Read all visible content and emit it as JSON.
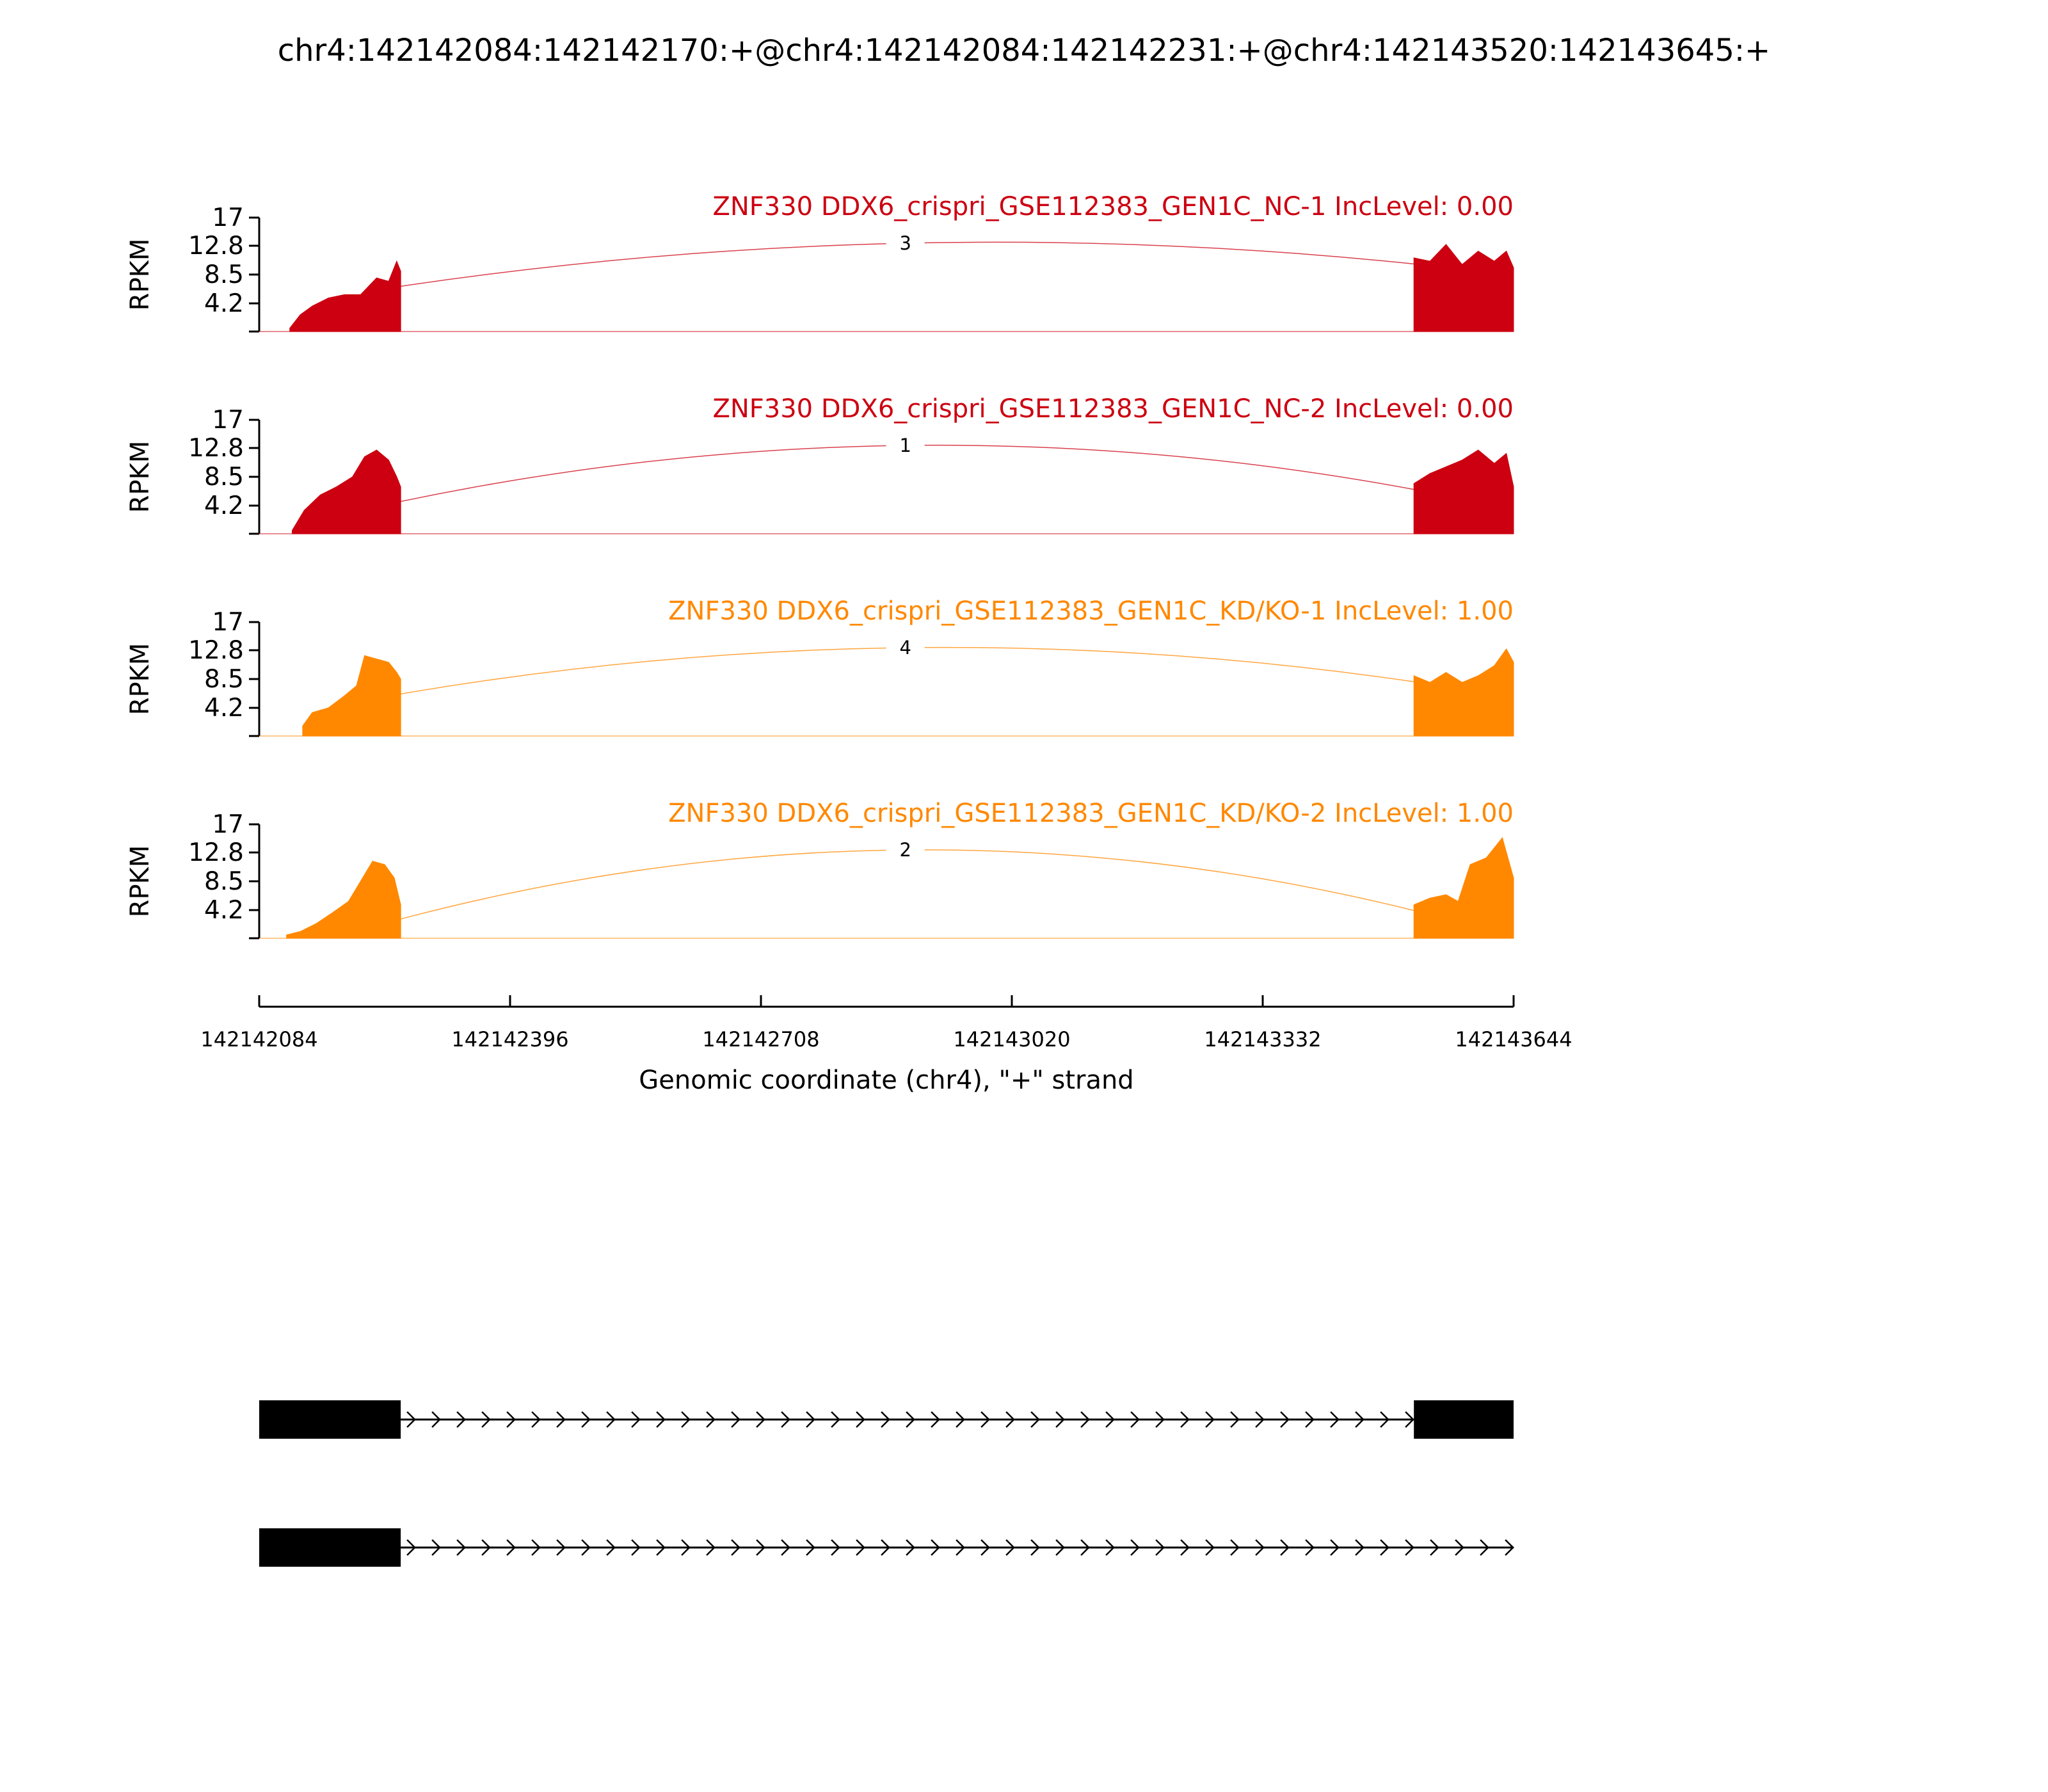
{
  "chart_data": {
    "type": "area",
    "title": "chr4:142142084:142142170:+@chr4:142142084:142142231:+@chr4:142143520:142143645:+",
    "xlabel": "Genomic coordinate (chr4), \"+\" strand",
    "ylabel": "RPKM",
    "xlim": [
      142142084,
      142143644
    ],
    "x_ticks": [
      "142142084",
      "142142396",
      "142142708",
      "142143020",
      "142143332",
      "142143644"
    ],
    "ylim": [
      0,
      17
    ],
    "y_ticks": [
      "17",
      "12.8",
      "8.5",
      "4.2"
    ],
    "grid": false,
    "exons": [
      {
        "start": 142142084,
        "end": 142142260
      },
      {
        "start": 142143520,
        "end": 142143644
      }
    ],
    "panels": [
      {
        "label": "ZNF330 DDX6_crispri_GSE112383_GEN1C_NC-1 IncLevel: 0.00",
        "color": "#cc0011",
        "junction_count": "3",
        "exon1_x": [
          142142122,
          142142135,
          142142150,
          142142170,
          142142190,
          142142210,
          142142230,
          142142245,
          142142255,
          142142260
        ],
        "exon1_y": [
          0.5,
          2.5,
          3.8,
          5.0,
          5.5,
          5.5,
          8.0,
          7.5,
          10.5,
          9.0
        ],
        "exon2_x": [
          142143520,
          142143540,
          142143560,
          142143580,
          142143600,
          142143620,
          142143635,
          142143644
        ],
        "exon2_y": [
          11.0,
          10.5,
          13.0,
          10.0,
          12.0,
          10.5,
          12.0,
          9.5
        ]
      },
      {
        "label": "ZNF330 DDX6_crispri_GSE112383_GEN1C_NC-2 IncLevel: 0.00",
        "color": "#cc0011",
        "junction_count": "1",
        "exon1_x": [
          142142125,
          142142140,
          142142160,
          142142180,
          142142200,
          142142215,
          142142230,
          142142245,
          142142255,
          142142260
        ],
        "exon1_y": [
          0.5,
          3.5,
          5.8,
          7.0,
          8.5,
          11.5,
          12.5,
          11.0,
          8.5,
          7.0
        ],
        "exon2_x": [
          142143520,
          142143540,
          142143560,
          142143580,
          142143600,
          142143620,
          142143635,
          142143644
        ],
        "exon2_y": [
          7.5,
          9.0,
          10.0,
          11.0,
          12.5,
          10.5,
          12.0,
          7.0
        ]
      },
      {
        "label": "ZNF330 DDX6_crispri_GSE112383_GEN1C_KD/KO-1 IncLevel: 1.00",
        "color": "#ff8800",
        "junction_count": "4",
        "exon1_x": [
          142142138,
          142142150,
          142142170,
          142142190,
          142142205,
          142142215,
          142142230,
          142142245,
          142142255,
          142142260
        ],
        "exon1_y": [
          1.5,
          3.5,
          4.2,
          6.0,
          7.5,
          12.0,
          11.5,
          11.0,
          9.5,
          8.5
        ],
        "exon2_x": [
          142143520,
          142143540,
          142143560,
          142143580,
          142143600,
          142143620,
          142143635,
          142143644
        ],
        "exon2_y": [
          9.0,
          8.0,
          9.5,
          8.0,
          9.0,
          10.5,
          13.0,
          11.0
        ]
      },
      {
        "label": "ZNF330 DDX6_crispri_GSE112383_GEN1C_KD/KO-2 IncLevel: 1.00",
        "color": "#ff8800",
        "junction_count": "2",
        "exon1_x": [
          142142118,
          142142135,
          142142155,
          142142175,
          142142195,
          142142210,
          142142225,
          142142240,
          142142252,
          142142260
        ],
        "exon1_y": [
          0.5,
          1.0,
          2.2,
          3.8,
          5.5,
          8.5,
          11.5,
          11.0,
          9.0,
          5.0
        ],
        "exon2_x": [
          142143520,
          142143540,
          142143560,
          142143575,
          142143590,
          142143610,
          142143630,
          142143644
        ],
        "exon2_y": [
          5.0,
          6.0,
          6.5,
          5.5,
          11.0,
          12.0,
          15.0,
          9.0
        ]
      }
    ]
  }
}
